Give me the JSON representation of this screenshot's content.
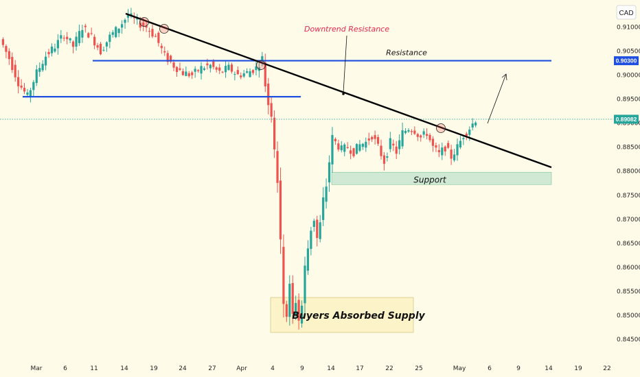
{
  "currency_badge": "CAD",
  "chart_data": {
    "type": "candlestick",
    "title": "",
    "xlabel": "",
    "ylabel": "",
    "ylim": [
      0.844,
      0.9145
    ],
    "grid": false,
    "y_ticks": [
      "0.91000",
      "0.90500",
      "0.90000",
      "0.89500",
      "0.89000",
      "0.88500",
      "0.88000",
      "0.87500",
      "0.87000",
      "0.86500",
      "0.86000",
      "0.85500",
      "0.85000",
      "0.84500"
    ],
    "x_ticks": [
      "Mar",
      "6",
      "11",
      "14",
      "19",
      "24",
      "27",
      "Apr",
      "4",
      "9",
      "14",
      "17",
      "22",
      "25",
      "May",
      "6",
      "9",
      "14",
      "19",
      "22"
    ],
    "last_price": "0.89082",
    "resistance_price": "0.90300",
    "colors": {
      "up": "#26a69a",
      "down": "#ef5350",
      "level": "#1f4fe0",
      "trend": "#000000",
      "last_price": "#26a69a",
      "resistance_label_bg": "#1f4fe0"
    },
    "series": [
      {
        "name": "",
        "anchors": [
          [
            0,
            0.9075
          ],
          [
            3,
            0.9035
          ],
          [
            6,
            0.8985
          ],
          [
            9,
            0.8955
          ],
          [
            12,
            0.9005
          ],
          [
            15,
            0.904
          ],
          [
            18,
            0.906
          ],
          [
            21,
            0.9085
          ],
          [
            24,
            0.906
          ],
          [
            27,
            0.91
          ],
          [
            30,
            0.908
          ],
          [
            33,
            0.905
          ],
          [
            36,
            0.908
          ],
          [
            39,
            0.91
          ],
          [
            42,
            0.9125
          ],
          [
            45,
            0.911
          ],
          [
            48,
            0.91
          ],
          [
            51,
            0.908
          ],
          [
            54,
            0.904
          ],
          [
            57,
            0.902
          ],
          [
            60,
            0.9005
          ],
          [
            63,
            0.9
          ],
          [
            66,
            0.9015
          ],
          [
            69,
            0.902
          ],
          [
            72,
            0.9005
          ],
          [
            75,
            0.9015
          ],
          [
            78,
            0.9
          ],
          [
            81,
            0.9005
          ],
          [
            84,
            0.9015
          ],
          [
            86,
            0.9035
          ],
          [
            87,
            0.898
          ],
          [
            88,
            0.894
          ],
          [
            89,
            0.892
          ],
          [
            90,
            0.885
          ],
          [
            91,
            0.878
          ],
          [
            92,
            0.865
          ],
          [
            93,
            0.853
          ],
          [
            94,
            0.85
          ],
          [
            95,
            0.856
          ],
          [
            96,
            0.85
          ],
          [
            97,
            0.853
          ],
          [
            98,
            0.849
          ],
          [
            99,
            0.852
          ],
          [
            100,
            0.86
          ],
          [
            101,
            0.864
          ],
          [
            102,
            0.868
          ],
          [
            103,
            0.87
          ],
          [
            104,
            0.866
          ],
          [
            105,
            0.869
          ],
          [
            106,
            0.874
          ],
          [
            107,
            0.877
          ],
          [
            108,
            0.882
          ],
          [
            109,
            0.887
          ],
          [
            110,
            0.886
          ],
          [
            112,
            0.8845
          ],
          [
            114,
            0.885
          ],
          [
            116,
            0.884
          ],
          [
            118,
            0.8855
          ],
          [
            120,
            0.886
          ],
          [
            122,
            0.8875
          ],
          [
            124,
            0.885
          ],
          [
            126,
            0.882
          ],
          [
            128,
            0.886
          ],
          [
            130,
            0.884
          ],
          [
            132,
            0.888
          ],
          [
            134,
            0.889
          ],
          [
            136,
            0.8885
          ],
          [
            138,
            0.887
          ],
          [
            140,
            0.888
          ],
          [
            142,
            0.885
          ],
          [
            144,
            0.8835
          ],
          [
            146,
            0.885
          ],
          [
            148,
            0.883
          ],
          [
            150,
            0.885
          ],
          [
            152,
            0.8875
          ],
          [
            154,
            0.889
          ],
          [
            156,
            0.8908
          ]
        ]
      }
    ],
    "levels": [
      {
        "name": "Resistance",
        "value": 0.903
      },
      {
        "name": "",
        "value": 0.8955
      }
    ],
    "trendline": {
      "name": "Downtrend Resistance",
      "from": [
        "Feb 17",
        0.9128
      ],
      "to": [
        "May 14",
        0.8808
      ]
    },
    "support_zone": {
      "name": "Support",
      "range": [
        0.8775,
        0.8795
      ]
    },
    "annotations": [
      "Downtrend Resistance",
      "Resistance",
      "Support",
      "Buyers Absorbed Supply"
    ]
  }
}
